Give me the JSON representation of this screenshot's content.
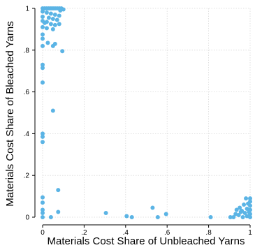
{
  "chart_data": {
    "type": "scatter",
    "xlabel": "Materials Cost Share of Unbleached Yarns",
    "ylabel": "Materials Cost Share of Bleached Yarns",
    "xlim": [
      0,
      1
    ],
    "ylim": [
      0,
      1
    ],
    "xticks": [
      {
        "value": 0,
        "label": "0"
      },
      {
        "value": 0.2,
        "label": ".2"
      },
      {
        "value": 0.4,
        "label": ".4"
      },
      {
        "value": 0.6,
        "label": ".6"
      },
      {
        "value": 0.8,
        "label": ".8"
      },
      {
        "value": 1,
        "label": "1"
      }
    ],
    "yticks": [
      {
        "value": 0,
        "label": "0"
      },
      {
        "value": 0.2,
        "label": ".2"
      },
      {
        "value": 0.4,
        "label": ".4"
      },
      {
        "value": 0.6,
        "label": ".6"
      },
      {
        "value": 0.8,
        "label": ".8"
      },
      {
        "value": 1,
        "label": "1"
      }
    ],
    "grid": true,
    "marker_color": "#5bb4e5",
    "points": [
      {
        "x": 0.0,
        "y": 1.0
      },
      {
        "x": 0.01,
        "y": 1.0
      },
      {
        "x": 0.02,
        "y": 1.0
      },
      {
        "x": 0.03,
        "y": 1.0
      },
      {
        "x": 0.04,
        "y": 1.0
      },
      {
        "x": 0.05,
        "y": 1.0
      },
      {
        "x": 0.06,
        "y": 1.0
      },
      {
        "x": 0.07,
        "y": 1.0
      },
      {
        "x": 0.08,
        "y": 1.0
      },
      {
        "x": 0.09,
        "y": 1.0
      },
      {
        "x": 0.1,
        "y": 0.995
      },
      {
        "x": 0.085,
        "y": 0.99
      },
      {
        "x": 0.0,
        "y": 0.985
      },
      {
        "x": 0.02,
        "y": 0.98
      },
      {
        "x": 0.04,
        "y": 0.975
      },
      {
        "x": 0.06,
        "y": 0.97
      },
      {
        "x": 0.08,
        "y": 0.965
      },
      {
        "x": 0.0,
        "y": 0.96
      },
      {
        "x": 0.03,
        "y": 0.955
      },
      {
        "x": 0.05,
        "y": 0.95
      },
      {
        "x": 0.07,
        "y": 0.945
      },
      {
        "x": 0.0,
        "y": 0.94
      },
      {
        "x": 0.02,
        "y": 0.935
      },
      {
        "x": 0.01,
        "y": 0.93
      },
      {
        "x": 0.04,
        "y": 0.925
      },
      {
        "x": 0.06,
        "y": 0.92
      },
      {
        "x": 0.08,
        "y": 0.925
      },
      {
        "x": 0.0,
        "y": 0.91
      },
      {
        "x": 0.02,
        "y": 0.905
      },
      {
        "x": 0.05,
        "y": 0.9
      },
      {
        "x": 0.0,
        "y": 0.875
      },
      {
        "x": 0.0,
        "y": 0.855
      },
      {
        "x": 0.025,
        "y": 0.835
      },
      {
        "x": 0.0,
        "y": 0.82
      },
      {
        "x": 0.06,
        "y": 0.83
      },
      {
        "x": 0.05,
        "y": 0.82
      },
      {
        "x": 0.095,
        "y": 0.795
      },
      {
        "x": 0.0,
        "y": 0.73
      },
      {
        "x": 0.0,
        "y": 0.715
      },
      {
        "x": 0.0,
        "y": 0.645
      },
      {
        "x": 0.05,
        "y": 0.51
      },
      {
        "x": 0.0,
        "y": 0.4
      },
      {
        "x": 0.0,
        "y": 0.385
      },
      {
        "x": 0.0,
        "y": 0.36
      },
      {
        "x": 0.075,
        "y": 0.13
      },
      {
        "x": 0.0,
        "y": 0.095
      },
      {
        "x": 0.0,
        "y": 0.07
      },
      {
        "x": 0.0,
        "y": 0.035
      },
      {
        "x": 0.0,
        "y": 0.02
      },
      {
        "x": 0.0,
        "y": 0.0
      },
      {
        "x": 0.04,
        "y": 0.0
      },
      {
        "x": 0.075,
        "y": 0.025
      },
      {
        "x": 0.305,
        "y": 0.02
      },
      {
        "x": 0.405,
        "y": 0.005
      },
      {
        "x": 0.43,
        "y": 0.0
      },
      {
        "x": 0.53,
        "y": 0.045
      },
      {
        "x": 0.555,
        "y": 0.0
      },
      {
        "x": 0.595,
        "y": 0.015
      },
      {
        "x": 0.81,
        "y": 0.0
      },
      {
        "x": 0.905,
        "y": 0.0
      },
      {
        "x": 0.92,
        "y": 0.0
      },
      {
        "x": 0.93,
        "y": 0.015
      },
      {
        "x": 0.935,
        "y": 0.035
      },
      {
        "x": 0.95,
        "y": 0.045
      },
      {
        "x": 0.96,
        "y": 0.03
      },
      {
        "x": 0.97,
        "y": 0.06
      },
      {
        "x": 0.975,
        "y": 0.02
      },
      {
        "x": 0.98,
        "y": 0.09
      },
      {
        "x": 0.985,
        "y": 0.04
      },
      {
        "x": 0.99,
        "y": 0.065
      },
      {
        "x": 0.995,
        "y": 0.025
      },
      {
        "x": 1.0,
        "y": 0.0
      },
      {
        "x": 1.0,
        "y": 0.015
      },
      {
        "x": 1.0,
        "y": 0.035
      },
      {
        "x": 1.0,
        "y": 0.055
      },
      {
        "x": 1.0,
        "y": 0.075
      },
      {
        "x": 1.0,
        "y": 0.09
      },
      {
        "x": 0.965,
        "y": 0.0
      },
      {
        "x": 0.945,
        "y": 0.01
      },
      {
        "x": 0.955,
        "y": 0.025
      },
      {
        "x": 0.985,
        "y": 0.005
      }
    ]
  }
}
